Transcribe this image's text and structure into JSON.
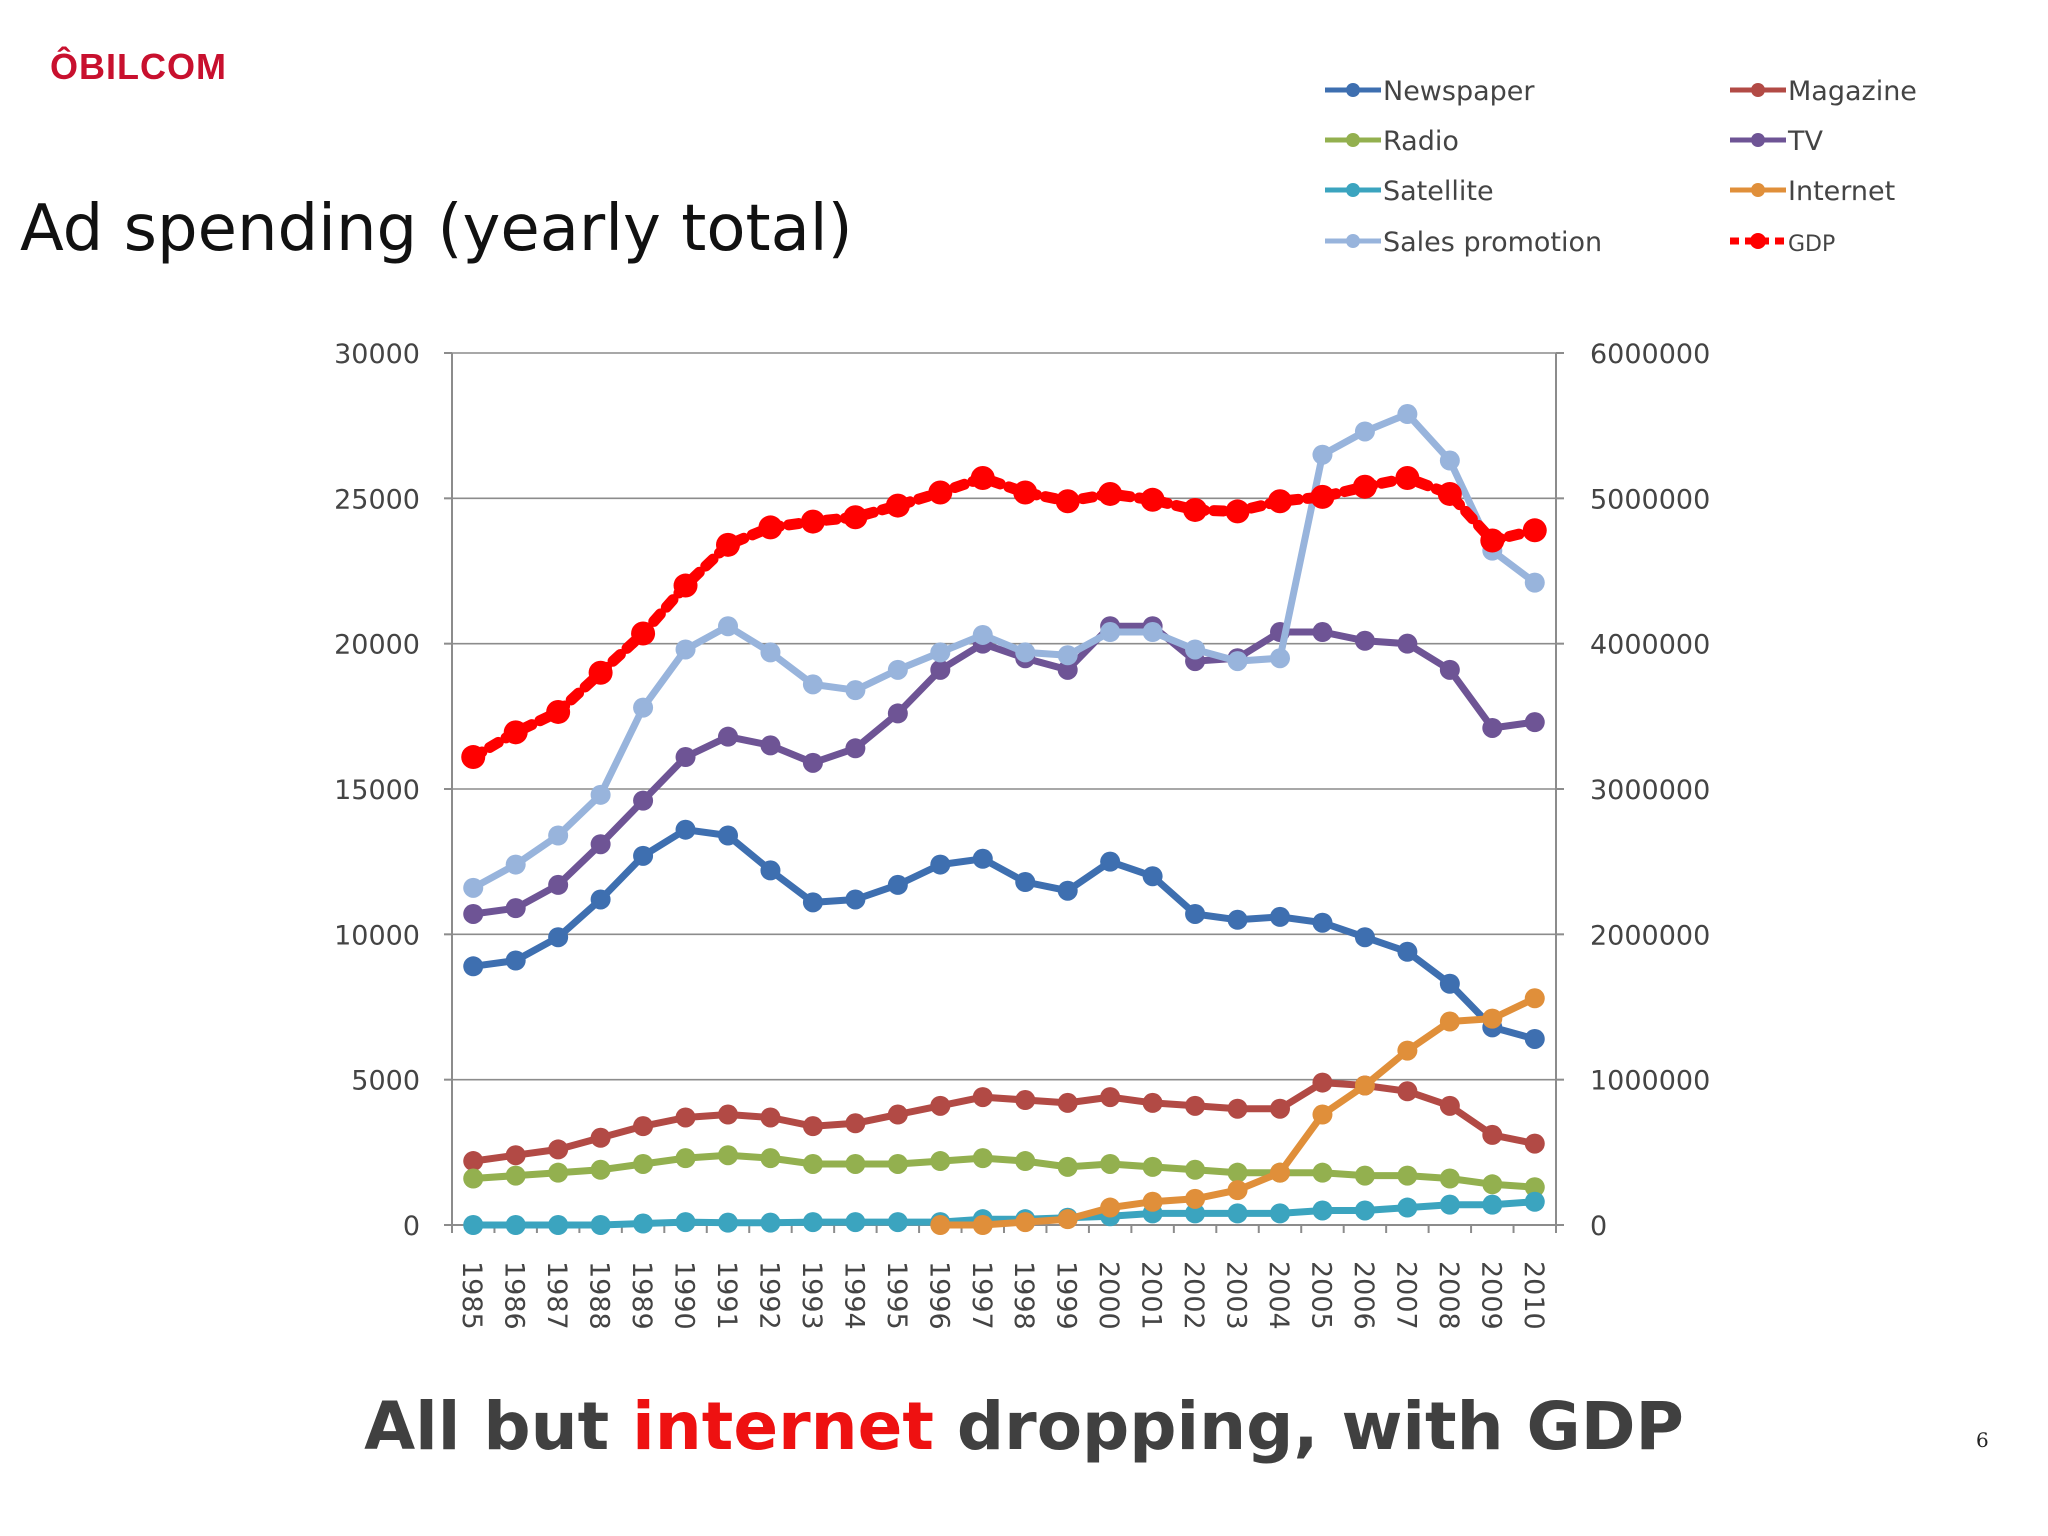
{
  "slide": {
    "logo": "ÔBILCOM",
    "title": "Ad spending (yearly total)",
    "caption_pre": "All but ",
    "caption_highlight": "internet",
    "caption_post": " dropping, with GDP",
    "page_number": "6",
    "colors": {
      "logo": "#c8102e",
      "highlight": "#ee1111",
      "caption": "#404040"
    }
  },
  "chart_data": {
    "type": "line",
    "x": [
      "1985",
      "1986",
      "1987",
      "1988",
      "1989",
      "1990",
      "1991",
      "1992",
      "1993",
      "1994",
      "1995",
      "1996",
      "1997",
      "1998",
      "1999",
      "2000",
      "2001",
      "2002",
      "2003",
      "2004",
      "2005",
      "2006",
      "2007",
      "2008",
      "2009",
      "2010"
    ],
    "y_left": {
      "min": 0,
      "max": 30000,
      "ticks": [
        "0",
        "5000",
        "10000",
        "15000",
        "20000",
        "25000",
        "30000"
      ]
    },
    "y_right": {
      "min": 0,
      "max": 6000000,
      "ticks": [
        "0",
        "1000000",
        "2000000",
        "3000000",
        "4000000",
        "5000000",
        "6000000"
      ]
    },
    "grid": "horizontal",
    "legend_position": "top-right",
    "series": [
      {
        "name": "Newspaper",
        "axis": "left",
        "color": "#3e6fb0",
        "values": [
          8900,
          9100,
          9900,
          11200,
          12700,
          13600,
          13400,
          12200,
          11100,
          11200,
          11700,
          12400,
          12600,
          11800,
          11500,
          12500,
          12000,
          10700,
          10500,
          10600,
          10400,
          9900,
          9400,
          8300,
          6800,
          6400
        ]
      },
      {
        "name": "Magazine",
        "axis": "left",
        "color": "#b24a45",
        "values": [
          2200,
          2400,
          2600,
          3000,
          3400,
          3700,
          3800,
          3700,
          3400,
          3500,
          3800,
          4100,
          4400,
          4300,
          4200,
          4400,
          4200,
          4100,
          4000,
          4000,
          4900,
          4800,
          4600,
          4100,
          3100,
          2800
        ]
      },
      {
        "name": "Radio",
        "axis": "left",
        "color": "#93b04f",
        "values": [
          1600,
          1700,
          1800,
          1900,
          2100,
          2300,
          2400,
          2300,
          2100,
          2100,
          2100,
          2200,
          2300,
          2200,
          2000,
          2100,
          2000,
          1900,
          1800,
          1800,
          1800,
          1700,
          1700,
          1600,
          1400,
          1300
        ]
      },
      {
        "name": "TV",
        "axis": "left",
        "color": "#6e5495",
        "values": [
          10700,
          10900,
          11700,
          13100,
          14600,
          16100,
          16800,
          16500,
          15900,
          16400,
          17600,
          19100,
          20000,
          19500,
          19100,
          20600,
          20600,
          19400,
          19500,
          20400,
          20400,
          20100,
          20000,
          19100,
          17100,
          17300
        ]
      },
      {
        "name": "Satellite",
        "axis": "left",
        "color": "#3ba4bf",
        "values": [
          0,
          0,
          0,
          0,
          50,
          100,
          80,
          80,
          100,
          100,
          100,
          100,
          200,
          200,
          250,
          300,
          400,
          400,
          400,
          400,
          500,
          500,
          600,
          700,
          700,
          800
        ]
      },
      {
        "name": "Internet",
        "axis": "left",
        "color": "#e08f3a",
        "values": [
          null,
          null,
          null,
          null,
          null,
          null,
          null,
          null,
          null,
          null,
          null,
          0,
          0,
          100,
          200,
          600,
          800,
          900,
          1200,
          1800,
          3800,
          4800,
          6000,
          7000,
          7100,
          7800
        ]
      },
      {
        "name": "Sales promotion",
        "axis": "left",
        "color": "#98b4dc",
        "values": [
          11600,
          12400,
          13400,
          14800,
          17800,
          19800,
          20600,
          19700,
          18600,
          18400,
          19100,
          19700,
          20300,
          19700,
          19600,
          20400,
          20400,
          19800,
          19400,
          19500,
          26500,
          27300,
          27900,
          26300,
          23200,
          22100
        ]
      },
      {
        "name": "GDP",
        "axis": "right",
        "color": "#ff0000",
        "dashed": true,
        "values": [
          3220000,
          3390000,
          3530000,
          3800000,
          4070000,
          4400000,
          4680000,
          4800000,
          4840000,
          4870000,
          4950000,
          5040000,
          5140000,
          5040000,
          4980000,
          5030000,
          4990000,
          4920000,
          4910000,
          4980000,
          5010000,
          5080000,
          5140000,
          5030000,
          4710000,
          4780000
        ]
      }
    ]
  }
}
